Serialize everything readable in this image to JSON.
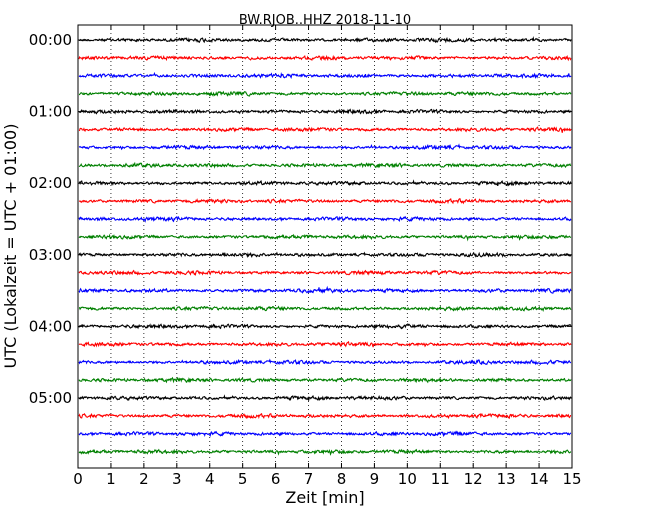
{
  "chart_data": {
    "type": "line",
    "title": "BW.RJOB..HHZ 2018-11-10",
    "xlabel": "Zeit  [min]",
    "ylabel": "UTC (Lokalzeit = UTC + 01:00)",
    "xlim": [
      0,
      15
    ],
    "x_ticks": [
      "0",
      "1",
      "2",
      "3",
      "4",
      "5",
      "6",
      "7",
      "8",
      "9",
      "10",
      "11",
      "12",
      "13",
      "14",
      "15"
    ],
    "y_tick_labels": [
      "00:00",
      "01:00",
      "02:00",
      "03:00",
      "04:00",
      "05:00"
    ],
    "trace_interval_minutes": 15,
    "trace_count": 24,
    "trace_colors": [
      "#000000",
      "#ff0000",
      "#0000ff",
      "#008000"
    ],
    "grid": "vertical dotted lines at each minute"
  }
}
